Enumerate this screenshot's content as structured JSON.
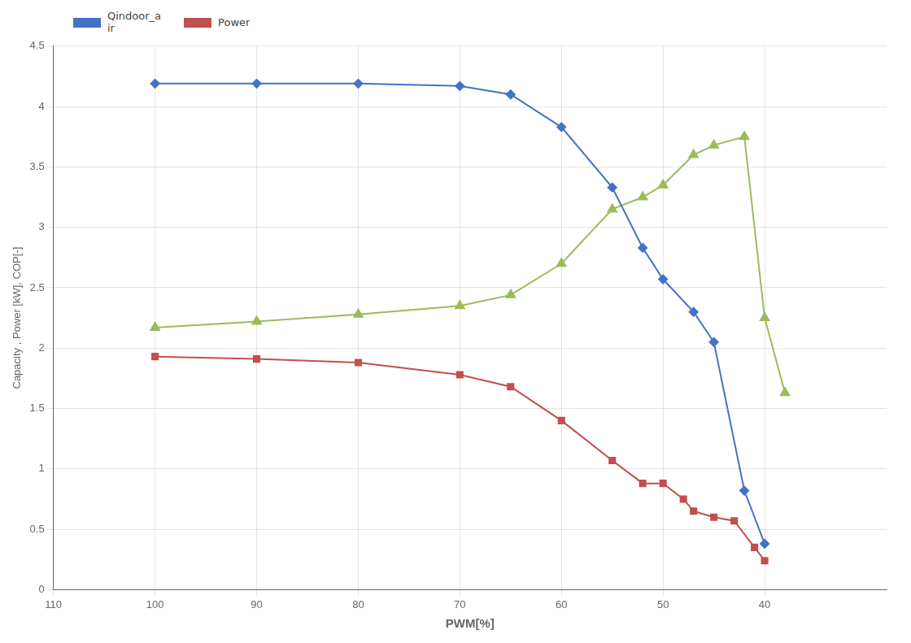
{
  "chart_data": {
    "type": "line",
    "xlabel": "PWM[%]",
    "ylabel": "Capacity , Power [kW], COP[-]",
    "xlim": [
      110,
      28
    ],
    "ylim": [
      0,
      4.5
    ],
    "xticks": [
      110,
      100,
      90,
      80,
      70,
      60,
      50,
      40
    ],
    "yticks": [
      0,
      0.5,
      1,
      1.5,
      2,
      2.5,
      3,
      3.5,
      4,
      4.5
    ],
    "grid": true,
    "legend": "upper left",
    "series": [
      {
        "name": "Qindoor_a\nir",
        "color": "#4472C4",
        "marker": "diamond",
        "x": [
          100,
          90,
          80,
          70,
          65,
          60,
          55,
          52,
          50,
          47,
          45,
          42,
          40
        ],
        "values": [
          4.19,
          4.19,
          4.19,
          4.17,
          4.1,
          3.83,
          3.33,
          2.83,
          2.57,
          2.3,
          2.05,
          0.82,
          0.38
        ]
      },
      {
        "name": "Power",
        "color": "#C0504D",
        "marker": "square",
        "x": [
          100,
          90,
          80,
          70,
          65,
          60,
          55,
          52,
          50,
          48,
          47,
          45,
          43,
          41,
          40
        ],
        "values": [
          1.93,
          1.91,
          1.88,
          1.78,
          1.68,
          1.4,
          1.07,
          0.88,
          0.88,
          0.75,
          0.65,
          0.6,
          0.57,
          0.35,
          0.24
        ]
      },
      {
        "color": "#9BBB59",
        "marker": "triangle",
        "x": [
          100,
          90,
          80,
          70,
          65,
          60,
          55,
          52,
          50,
          47,
          45,
          42,
          40,
          38
        ],
        "values": [
          2.17,
          2.22,
          2.28,
          2.35,
          2.44,
          2.7,
          3.15,
          3.25,
          3.35,
          3.6,
          3.68,
          3.75,
          2.25,
          1.63
        ]
      }
    ]
  }
}
